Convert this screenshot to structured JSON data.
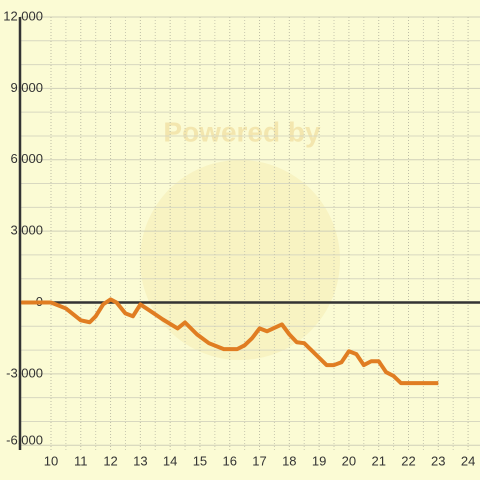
{
  "chart_data": {
    "type": "line",
    "watermark": "Powered by",
    "x": [
      9,
      10,
      10.5,
      11,
      11.3,
      11.5,
      11.75,
      12,
      12.2,
      12.5,
      12.75,
      13,
      13.3,
      13.75,
      14.25,
      14.5,
      14.9,
      15.3,
      15.8,
      16.25,
      16.5,
      16.75,
      17,
      17.25,
      17.75,
      18,
      18.25,
      18.5,
      19.25,
      19.5,
      19.75,
      20,
      20.25,
      20.5,
      20.75,
      21,
      21.25,
      21.5,
      21.75,
      23
    ],
    "series": [
      {
        "color": "#e07d22",
        "values": [
          0,
          0,
          -250,
          -750,
          -830,
          -580,
          -80,
          130,
          0,
          -460,
          -580,
          -80,
          -330,
          -710,
          -1090,
          -840,
          -1340,
          -1710,
          -1960,
          -1960,
          -1800,
          -1500,
          -1090,
          -1210,
          -920,
          -1340,
          -1670,
          -1710,
          -2630,
          -2630,
          -2510,
          -2050,
          -2170,
          -2630,
          -2470,
          -2470,
          -2930,
          -3090,
          -3390,
          -3390
        ]
      }
    ],
    "xlim": [
      8.96,
      24.4
    ],
    "xticks": [
      10,
      11,
      12,
      13,
      14,
      15,
      16,
      17,
      18,
      19,
      20,
      21,
      22,
      23,
      24
    ],
    "xminor": [
      10.5,
      11.5,
      12.5,
      13.5,
      14.5,
      15.5,
      16.5,
      17.5,
      18.5,
      19.5,
      20.5,
      21.5,
      22.5,
      23.5
    ],
    "ylim": [
      -6200,
      12000
    ],
    "yticks": [
      {
        "value": -6000,
        "label": "-6,000"
      },
      {
        "value": -3000,
        "label": "-3,000"
      },
      0,
      {
        "value": 3000,
        "label": "3,000"
      },
      {
        "value": 6000,
        "label": "6,000"
      },
      {
        "value": 9000,
        "label": "9,000"
      },
      {
        "value": 12000,
        "label": "12,000"
      }
    ],
    "yminor": [
      -5000,
      -4000,
      -2000,
      -1000,
      1000,
      2000,
      4000,
      5000,
      7000,
      8000,
      10000,
      11000
    ],
    "grid": true
  }
}
